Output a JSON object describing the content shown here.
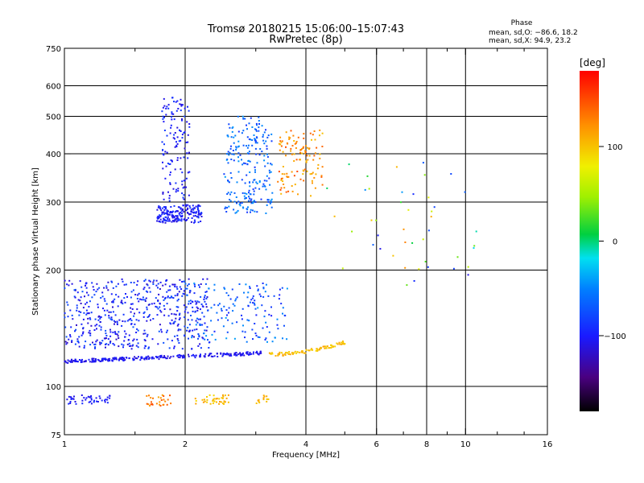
{
  "header": {
    "title_line1": "Tromsø 20180215 15:06:00–15:07:43",
    "title_line2": "RwPretec (8p)",
    "phase_title": "Phase",
    "phase_line1": "mean, sd,O: −86.6, 18.2",
    "phase_line2": "mean, sd,X:  94.9, 23.2"
  },
  "colorbar": {
    "label": "[deg]",
    "ticks": [
      {
        "value": 100,
        "label": "100"
      },
      {
        "value": 0,
        "label": "0"
      },
      {
        "value": -100,
        "label": "−100"
      }
    ],
    "range": [
      -180,
      180
    ]
  },
  "chart_data": {
    "type": "scatter",
    "title": "Tromsø 20180215 15:06:00–15:07:43 RwPretec (8p)",
    "xlabel": "Frequency [MHz]",
    "ylabel": "Stationary phase Virtual Height [km]",
    "xscale": "log",
    "yscale": "log",
    "xlim": [
      1,
      16
    ],
    "ylim": [
      75,
      750
    ],
    "xticks": [
      {
        "value": 1,
        "label": "1"
      },
      {
        "value": 2,
        "label": "2"
      },
      {
        "value": 4,
        "label": "4"
      },
      {
        "value": 6,
        "label": "6"
      },
      {
        "value": 8,
        "label": "8"
      },
      {
        "value": 10,
        "label": "10"
      },
      {
        "value": 16,
        "label": "16"
      }
    ],
    "xgrid": [
      2,
      4,
      6,
      8,
      10
    ],
    "xminor": [
      1.5,
      3,
      5,
      7,
      9,
      12,
      14
    ],
    "yticks": [
      {
        "value": 75,
        "label": "75"
      },
      {
        "value": 100,
        "label": "100"
      },
      {
        "value": 200,
        "label": "200"
      },
      {
        "value": 300,
        "label": "300"
      },
      {
        "value": 400,
        "label": "400"
      },
      {
        "value": 500,
        "label": "500"
      },
      {
        "value": 600,
        "label": "600"
      },
      {
        "value": 750,
        "label": "750"
      }
    ],
    "ygrid": [
      100,
      200,
      300,
      400,
      500,
      600
    ],
    "colorscale": "rainbow (phase in degrees)",
    "clusters": [
      {
        "name": "e-layer-low",
        "x_range": [
          1.0,
          1.3
        ],
        "y_range": [
          90,
          95
        ],
        "phase": [
          -110,
          -90
        ],
        "count": 45
      },
      {
        "name": "e-layer-warm",
        "x_range": [
          1.6,
          1.85
        ],
        "y_range": [
          89,
          95
        ],
        "phase": [
          110,
          150
        ],
        "count": 28
      },
      {
        "name": "e-layer-yellow",
        "x_range": [
          2.1,
          2.6
        ],
        "y_range": [
          90,
          95
        ],
        "phase": [
          90,
          120
        ],
        "count": 40
      },
      {
        "name": "e-layer-yellow2",
        "x_range": [
          3.0,
          3.25
        ],
        "y_range": [
          90,
          95
        ],
        "phase": [
          95,
          120
        ],
        "count": 14
      },
      {
        "name": "f1-trace-blue",
        "x_range": [
          1.0,
          3.1
        ],
        "y_range": [
          116,
          122
        ],
        "phase": [
          -115,
          -95
        ],
        "count": 260
      },
      {
        "name": "f1-trace-yellow",
        "x_range": [
          3.2,
          5.0
        ],
        "y_range": [
          121,
          130
        ],
        "phase": [
          90,
          115
        ],
        "count": 90
      },
      {
        "name": "spread-low",
        "x_range": [
          1.0,
          2.3
        ],
        "y_range": [
          125,
          190
        ],
        "phase": [
          -120,
          -70
        ],
        "count": 520
      },
      {
        "name": "spread-mid",
        "x_range": [
          2.0,
          3.6
        ],
        "y_range": [
          130,
          185
        ],
        "phase": [
          -100,
          -40
        ],
        "count": 160
      },
      {
        "name": "f2-lower-band",
        "x_range": [
          1.7,
          2.2
        ],
        "y_range": [
          265,
          295
        ],
        "phase": [
          -115,
          -85
        ],
        "count": 190
      },
      {
        "name": "f2-cusp",
        "x_range": [
          1.75,
          2.05
        ],
        "y_range": [
          300,
          560
        ],
        "phase": [
          -115,
          -80
        ],
        "count": 130
      },
      {
        "name": "f2-middle",
        "x_range": [
          2.5,
          3.3
        ],
        "y_range": [
          280,
          500
        ],
        "phase": [
          -90,
          -40
        ],
        "count": 230
      },
      {
        "name": "f2-orange",
        "x_range": [
          3.4,
          4.4
        ],
        "y_range": [
          310,
          460
        ],
        "phase": [
          100,
          150
        ],
        "count": 120
      },
      {
        "name": "scatter-high",
        "x_range": [
          4.5,
          10.8
        ],
        "y_range": [
          180,
          380
        ],
        "phase": [
          -110,
          130
        ],
        "count": 45
      }
    ]
  }
}
